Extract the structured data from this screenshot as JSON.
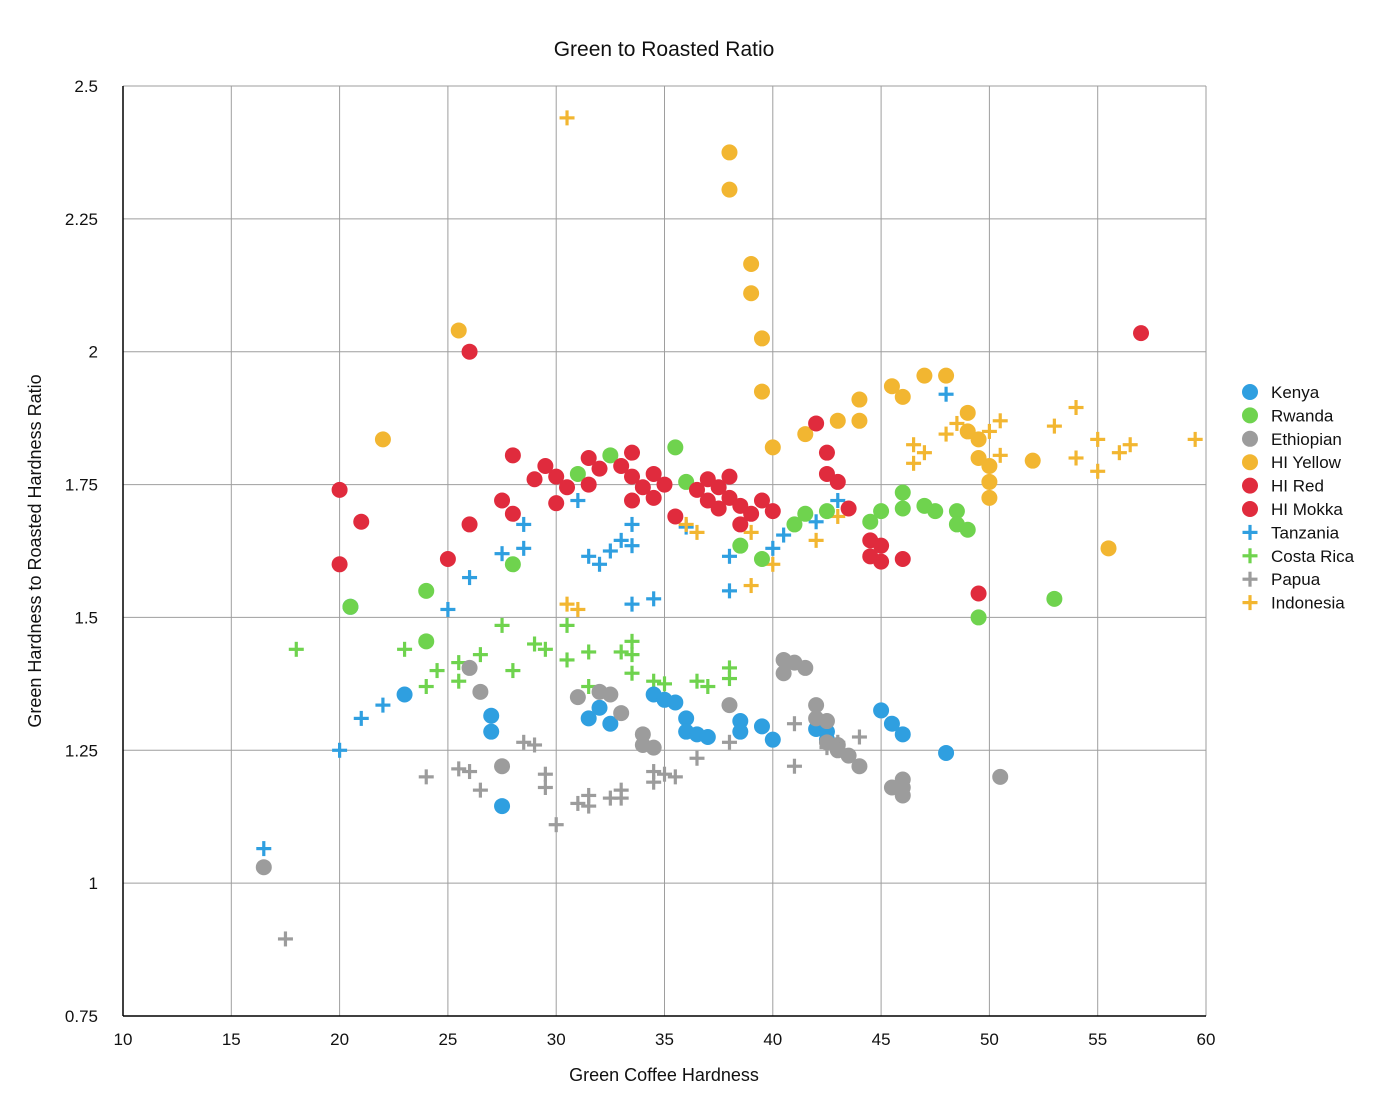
{
  "chart_data": {
    "type": "scatter",
    "title": "Green to Roasted Ratio",
    "xlabel": "Green Coffee Hardness",
    "ylabel": "Green Hardness to Roasted Hardness Ratio",
    "xlim": [
      10,
      60
    ],
    "ylim": [
      0.75,
      2.5
    ],
    "x_ticks": [
      10,
      15,
      20,
      25,
      30,
      35,
      40,
      45,
      50,
      55,
      60
    ],
    "y_ticks": [
      0.75,
      1,
      1.25,
      1.5,
      1.75,
      2,
      2.25,
      2.5
    ],
    "y_tick_labels": [
      "0.75",
      "1",
      "1.25",
      "1.5",
      "1.75",
      "2",
      "2.25",
      "2.5"
    ],
    "grid": true,
    "legend_position": "right",
    "series": [
      {
        "name": "Kenya",
        "marker": "circle",
        "color": "#2f9fe0",
        "points": [
          [
            20.5,
            1.52
          ],
          [
            23,
            1.355
          ],
          [
            27,
            1.315
          ],
          [
            27,
            1.285
          ],
          [
            27.5,
            1.145
          ],
          [
            31.5,
            1.31
          ],
          [
            32,
            1.33
          ],
          [
            32.5,
            1.3
          ],
          [
            34.5,
            1.355
          ],
          [
            35,
            1.345
          ],
          [
            35.5,
            1.34
          ],
          [
            36,
            1.31
          ],
          [
            36,
            1.285
          ],
          [
            36.5,
            1.28
          ],
          [
            37,
            1.275
          ],
          [
            38.5,
            1.305
          ],
          [
            38.5,
            1.285
          ],
          [
            39.5,
            1.295
          ],
          [
            40,
            1.27
          ],
          [
            42,
            1.29
          ],
          [
            42.5,
            1.285
          ],
          [
            42.5,
            1.27
          ],
          [
            45,
            1.325
          ],
          [
            45.5,
            1.3
          ],
          [
            46,
            1.28
          ],
          [
            48,
            1.245
          ]
        ]
      },
      {
        "name": "Rwanda",
        "marker": "circle",
        "color": "#6fd34e",
        "points": [
          [
            20.5,
            1.52
          ],
          [
            24,
            1.55
          ],
          [
            24,
            1.455
          ],
          [
            28,
            1.6
          ],
          [
            31,
            1.77
          ],
          [
            32.5,
            1.805
          ],
          [
            35.5,
            1.82
          ],
          [
            36,
            1.755
          ],
          [
            38.5,
            1.635
          ],
          [
            39.5,
            1.61
          ],
          [
            41,
            1.675
          ],
          [
            41.5,
            1.695
          ],
          [
            42.5,
            1.7
          ],
          [
            44.5,
            1.68
          ],
          [
            45,
            1.7
          ],
          [
            46,
            1.735
          ],
          [
            46,
            1.705
          ],
          [
            47,
            1.71
          ],
          [
            47.5,
            1.7
          ],
          [
            48.5,
            1.7
          ],
          [
            48.5,
            1.675
          ],
          [
            49,
            1.665
          ],
          [
            49.5,
            1.5
          ],
          [
            53,
            1.535
          ]
        ]
      },
      {
        "name": "Ethiopian",
        "marker": "circle",
        "color": "#9c9c9c",
        "points": [
          [
            16.5,
            1.03
          ],
          [
            26,
            1.405
          ],
          [
            26.5,
            1.36
          ],
          [
            27.5,
            1.22
          ],
          [
            31,
            1.35
          ],
          [
            32,
            1.36
          ],
          [
            32.5,
            1.355
          ],
          [
            33,
            1.32
          ],
          [
            34,
            1.28
          ],
          [
            34,
            1.26
          ],
          [
            34.5,
            1.255
          ],
          [
            38,
            1.335
          ],
          [
            40.5,
            1.42
          ],
          [
            40.5,
            1.395
          ],
          [
            41,
            1.415
          ],
          [
            41.5,
            1.405
          ],
          [
            42,
            1.335
          ],
          [
            42,
            1.31
          ],
          [
            42.5,
            1.305
          ],
          [
            42.5,
            1.265
          ],
          [
            43,
            1.26
          ],
          [
            43,
            1.25
          ],
          [
            43.5,
            1.24
          ],
          [
            44,
            1.22
          ],
          [
            45.5,
            1.18
          ],
          [
            46,
            1.195
          ],
          [
            46,
            1.18
          ],
          [
            46,
            1.165
          ],
          [
            50.5,
            1.2
          ]
        ]
      },
      {
        "name": "HI Yellow",
        "marker": "circle",
        "color": "#f2b631",
        "points": [
          [
            22,
            1.835
          ],
          [
            25.5,
            2.04
          ],
          [
            38,
            2.375
          ],
          [
            38,
            2.305
          ],
          [
            39,
            2.165
          ],
          [
            39,
            2.11
          ],
          [
            39.5,
            2.025
          ],
          [
            39.5,
            1.925
          ],
          [
            40,
            1.82
          ],
          [
            41.5,
            1.845
          ],
          [
            43,
            1.87
          ],
          [
            44,
            1.91
          ],
          [
            44,
            1.87
          ],
          [
            45.5,
            1.935
          ],
          [
            46,
            1.915
          ],
          [
            47,
            1.955
          ],
          [
            48,
            1.955
          ],
          [
            49,
            1.885
          ],
          [
            49,
            1.85
          ],
          [
            49.5,
            1.835
          ],
          [
            49.5,
            1.8
          ],
          [
            50,
            1.785
          ],
          [
            50,
            1.755
          ],
          [
            50,
            1.725
          ],
          [
            52,
            1.795
          ],
          [
            55.5,
            1.63
          ]
        ]
      },
      {
        "name": "HI Red",
        "marker": "circle",
        "color": "#e02b3d",
        "points": [
          [
            20,
            1.74
          ],
          [
            20,
            1.6
          ],
          [
            21,
            1.68
          ],
          [
            25,
            1.61
          ],
          [
            26,
            2.0
          ],
          [
            26,
            1.675
          ],
          [
            27.5,
            1.72
          ],
          [
            28,
            1.805
          ],
          [
            28,
            1.695
          ],
          [
            29,
            1.76
          ],
          [
            29.5,
            1.785
          ],
          [
            30,
            1.765
          ],
          [
            30,
            1.715
          ],
          [
            30.5,
            1.745
          ],
          [
            31.5,
            1.8
          ],
          [
            31.5,
            1.75
          ],
          [
            32,
            1.78
          ],
          [
            33,
            1.785
          ],
          [
            33.5,
            1.81
          ],
          [
            33.5,
            1.765
          ],
          [
            33.5,
            1.72
          ],
          [
            34,
            1.745
          ],
          [
            34.5,
            1.77
          ],
          [
            34.5,
            1.725
          ],
          [
            35,
            1.75
          ],
          [
            35.5,
            1.69
          ],
          [
            36.5,
            1.74
          ],
          [
            37,
            1.76
          ],
          [
            37,
            1.72
          ],
          [
            37.5,
            1.745
          ],
          [
            37.5,
            1.705
          ],
          [
            38,
            1.765
          ],
          [
            38,
            1.725
          ],
          [
            38.5,
            1.71
          ],
          [
            38.5,
            1.675
          ],
          [
            39,
            1.695
          ],
          [
            39.5,
            1.72
          ],
          [
            40,
            1.7
          ],
          [
            42,
            1.865
          ],
          [
            42.5,
            1.81
          ],
          [
            42.5,
            1.77
          ],
          [
            43,
            1.755
          ],
          [
            43.5,
            1.705
          ]
        ]
      },
      {
        "name": "HI Mokka",
        "marker": "circle",
        "color": "#e02b3d",
        "points": [
          [
            44.5,
            1.645
          ],
          [
            44.5,
            1.615
          ],
          [
            45,
            1.635
          ],
          [
            45,
            1.605
          ],
          [
            46,
            1.61
          ],
          [
            49.5,
            1.545
          ],
          [
            57,
            2.035
          ]
        ]
      },
      {
        "name": "Tanzania",
        "marker": "plus",
        "color": "#2f9fe0",
        "points": [
          [
            16.5,
            1.065
          ],
          [
            20,
            1.25
          ],
          [
            21,
            1.31
          ],
          [
            22,
            1.335
          ],
          [
            25,
            1.515
          ],
          [
            26,
            1.575
          ],
          [
            27.5,
            1.62
          ],
          [
            28.5,
            1.63
          ],
          [
            28.5,
            1.675
          ],
          [
            31,
            1.72
          ],
          [
            31.5,
            1.615
          ],
          [
            32,
            1.6
          ],
          [
            32.5,
            1.625
          ],
          [
            33,
            1.645
          ],
          [
            33.5,
            1.635
          ],
          [
            33.5,
            1.675
          ],
          [
            33.5,
            1.525
          ],
          [
            34.5,
            1.535
          ],
          [
            36,
            1.67
          ],
          [
            38,
            1.615
          ],
          [
            38,
            1.55
          ],
          [
            40,
            1.63
          ],
          [
            40.5,
            1.655
          ],
          [
            42,
            1.68
          ],
          [
            43,
            1.72
          ],
          [
            48,
            1.92
          ]
        ]
      },
      {
        "name": "Costa Rica",
        "marker": "plus",
        "color": "#6fd34e",
        "points": [
          [
            18,
            1.44
          ],
          [
            23,
            1.44
          ],
          [
            24,
            1.37
          ],
          [
            24.5,
            1.4
          ],
          [
            25.5,
            1.415
          ],
          [
            25.5,
            1.38
          ],
          [
            26.5,
            1.43
          ],
          [
            27.5,
            1.485
          ],
          [
            28,
            1.4
          ],
          [
            29,
            1.45
          ],
          [
            29.5,
            1.44
          ],
          [
            30.5,
            1.485
          ],
          [
            30.5,
            1.42
          ],
          [
            31.5,
            1.435
          ],
          [
            31.5,
            1.37
          ],
          [
            33,
            1.435
          ],
          [
            33.5,
            1.455
          ],
          [
            33.5,
            1.43
          ],
          [
            33.5,
            1.395
          ],
          [
            34.5,
            1.38
          ],
          [
            35,
            1.375
          ],
          [
            36.5,
            1.38
          ],
          [
            37,
            1.37
          ],
          [
            38,
            1.405
          ],
          [
            38,
            1.385
          ]
        ]
      },
      {
        "name": "Papua",
        "marker": "plus",
        "color": "#9c9c9c",
        "points": [
          [
            17.5,
            0.895
          ],
          [
            24,
            1.2
          ],
          [
            25.5,
            1.215
          ],
          [
            26,
            1.21
          ],
          [
            26.5,
            1.175
          ],
          [
            28.5,
            1.265
          ],
          [
            29,
            1.26
          ],
          [
            29.5,
            1.205
          ],
          [
            29.5,
            1.18
          ],
          [
            30,
            1.11
          ],
          [
            31,
            1.15
          ],
          [
            31.5,
            1.165
          ],
          [
            31.5,
            1.145
          ],
          [
            32.5,
            1.16
          ],
          [
            33,
            1.175
          ],
          [
            33,
            1.16
          ],
          [
            34.5,
            1.21
          ],
          [
            34.5,
            1.19
          ],
          [
            35,
            1.205
          ],
          [
            35.5,
            1.2
          ],
          [
            36.5,
            1.235
          ],
          [
            38,
            1.265
          ],
          [
            41,
            1.3
          ],
          [
            41,
            1.22
          ],
          [
            42.5,
            1.255
          ],
          [
            43,
            1.265
          ],
          [
            44,
            1.275
          ]
        ]
      },
      {
        "name": "Indonesia",
        "marker": "plus",
        "color": "#f2b631",
        "points": [
          [
            30.5,
            2.44
          ],
          [
            30.5,
            1.525
          ],
          [
            31,
            1.515
          ],
          [
            36,
            1.675
          ],
          [
            36.5,
            1.66
          ],
          [
            39,
            1.66
          ],
          [
            39,
            1.56
          ],
          [
            40,
            1.6
          ],
          [
            42,
            1.645
          ],
          [
            43,
            1.69
          ],
          [
            46.5,
            1.825
          ],
          [
            46.5,
            1.79
          ],
          [
            47,
            1.81
          ],
          [
            48,
            1.845
          ],
          [
            48.5,
            1.865
          ],
          [
            50,
            1.85
          ],
          [
            50.5,
            1.87
          ],
          [
            50.5,
            1.805
          ],
          [
            53,
            1.86
          ],
          [
            54,
            1.895
          ],
          [
            54,
            1.8
          ],
          [
            55,
            1.835
          ],
          [
            55,
            1.775
          ],
          [
            56,
            1.81
          ],
          [
            56.5,
            1.825
          ],
          [
            59.5,
            1.835
          ]
        ]
      }
    ]
  }
}
